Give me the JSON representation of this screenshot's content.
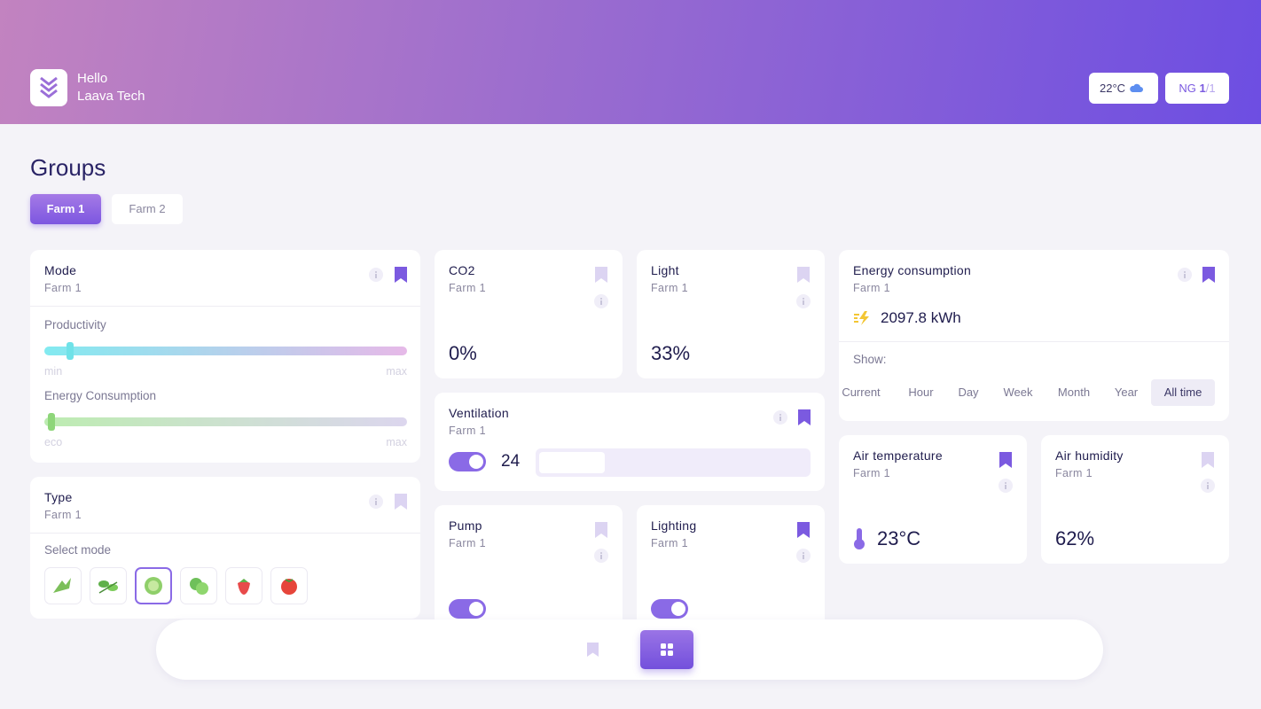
{
  "header": {
    "greeting": "Hello",
    "user": "Laava Tech",
    "weather": "22°C",
    "network": {
      "label": "NG",
      "current": "1",
      "total": "/1"
    }
  },
  "groups": {
    "title": "Groups",
    "tabs": [
      "Farm 1",
      "Farm 2"
    ]
  },
  "cards": {
    "mode": {
      "title": "Mode",
      "subtitle": "Farm 1",
      "bookmarked": true,
      "sliders": [
        {
          "label": "Productivity",
          "min": "min",
          "max": "max"
        },
        {
          "label": "Energy Consumption",
          "min": "eco",
          "max": "max"
        }
      ]
    },
    "type": {
      "title": "Type",
      "subtitle": "Farm 1",
      "bookmarked": false,
      "prompt": "Select mode"
    },
    "co2": {
      "title": "CO2",
      "subtitle": "Farm 1",
      "bookmarked": false,
      "value": "0%"
    },
    "light": {
      "title": "Light",
      "subtitle": "Farm 1",
      "bookmarked": false,
      "value": "33%"
    },
    "ventilation": {
      "title": "Ventilation",
      "subtitle": "Farm 1",
      "bookmarked": true,
      "on": true,
      "value": 24
    },
    "pump": {
      "title": "Pump",
      "subtitle": "Farm 1",
      "bookmarked": false,
      "on": true
    },
    "lighting": {
      "title": "Lighting",
      "subtitle": "Farm 1",
      "bookmarked": true,
      "on": true
    },
    "energy": {
      "title": "Energy consumption",
      "subtitle": "Farm 1",
      "bookmarked": true,
      "value": "2097.8 kWh",
      "show": "Show:",
      "periods": [
        "Current",
        "Hour",
        "Day",
        "Week",
        "Month",
        "Year",
        "All time"
      ]
    },
    "air_temperature": {
      "title": "Air temperature",
      "subtitle": "Farm 1",
      "bookmarked": true,
      "value": "23°C"
    },
    "air_humidity": {
      "title": "Air humidity",
      "subtitle": "Farm 1",
      "bookmarked": false,
      "value": "62%"
    }
  }
}
